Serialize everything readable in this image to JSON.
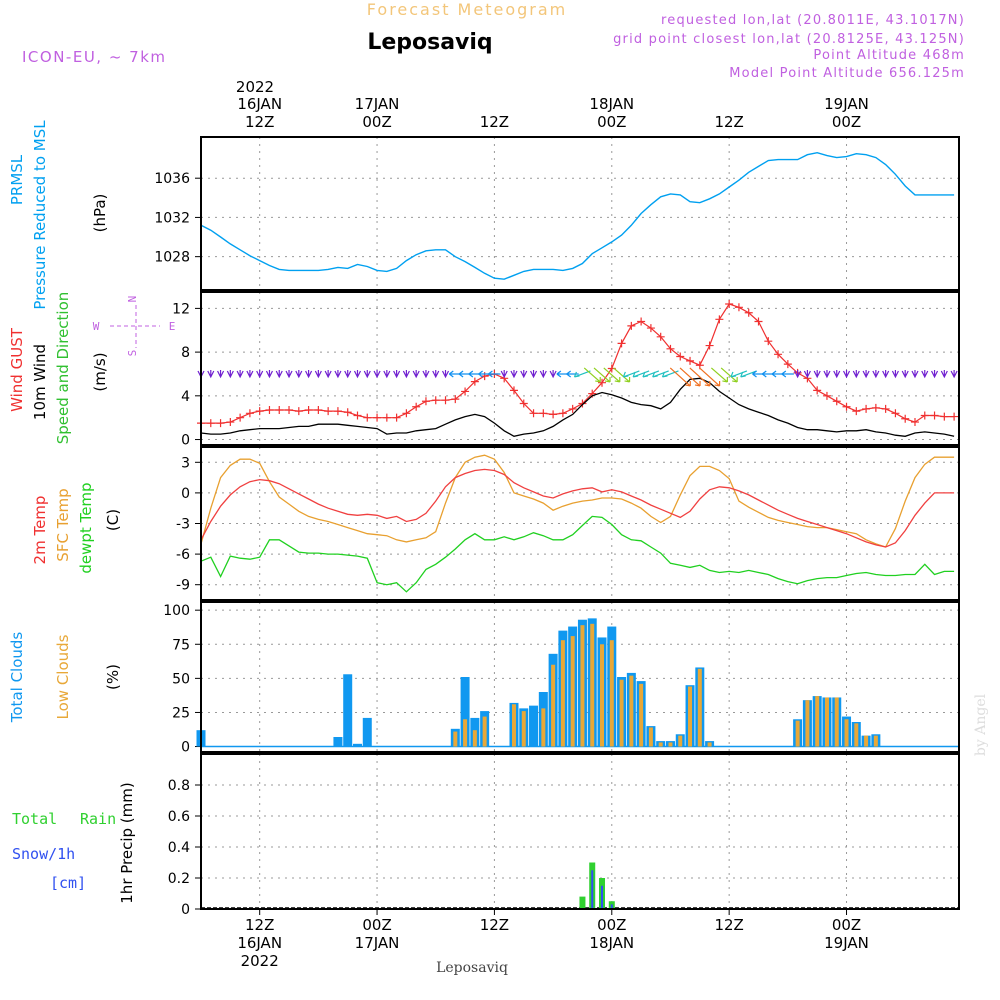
{
  "header": {
    "subtitle": "Forecast Meteogram",
    "station": "Leposaviq",
    "model": "ICON-EU, ~ 7km",
    "requested": "requested lon,lat (20.8011E, 43.1017N)",
    "grid": "grid point closest lon,lat (20.8125E, 43.125N)",
    "altitude": "Point Altitude 468m",
    "model_altitude": "Model Point Altitude 656.125m",
    "year": "2022",
    "footer_station": "Leposaviq",
    "watermark": "by Angel"
  },
  "colors": {
    "subtitle": "#f3c67a",
    "meta": "#c060e0",
    "pressure": "#00a0f0",
    "gust": "#f03030",
    "wind": "#000000",
    "dir": "#30c030",
    "t2m": "#f04040",
    "sfc": "#e8a030",
    "dew": "#20d020",
    "total_cloud": "#1098f0",
    "low_cloud": "#e8a838",
    "rain": "#30d030",
    "snow": "#3050f0",
    "grid": "#999999"
  },
  "time_axis": {
    "hours": [
      6,
      6,
      6,
      6,
      6,
      6,
      6
    ],
    "top_labels": [
      {
        "h": 12,
        "line1": "16JAN",
        "line2": "12Z"
      },
      {
        "h": 24,
        "line1": "17JAN",
        "line2": "00Z"
      },
      {
        "h": 36,
        "line1": "",
        "line2": "12Z"
      },
      {
        "h": 48,
        "line1": "18JAN",
        "line2": "00Z"
      },
      {
        "h": 60,
        "line1": "",
        "line2": "12Z"
      },
      {
        "h": 72,
        "line1": "19JAN",
        "line2": "00Z"
      }
    ],
    "bottom_labels": [
      {
        "h": 12,
        "line1": "12Z",
        "line2": "16JAN",
        "line3": "2022"
      },
      {
        "h": 24,
        "line1": "00Z",
        "line2": "17JAN",
        "line3": ""
      },
      {
        "h": 36,
        "line1": "12Z",
        "line2": "",
        "line3": ""
      },
      {
        "h": 48,
        "line1": "00Z",
        "line2": "18JAN",
        "line3": ""
      },
      {
        "h": 60,
        "line1": "12Z",
        "line2": "",
        "line3": ""
      },
      {
        "h": 72,
        "line1": "00Z",
        "line2": "19JAN",
        "line3": ""
      }
    ]
  },
  "chart_data": [
    {
      "type": "line",
      "id": "pressure",
      "label1": "PRMSL",
      "label2": "Pressure Reduced to MSL",
      "unit": "(hPa)",
      "ylim": [
        1024.6,
        1040.2
      ],
      "yticks": [
        1028,
        1032,
        1036
      ],
      "x": [
        6,
        7,
        8,
        9,
        10,
        11,
        12,
        13,
        14,
        15,
        16,
        17,
        18,
        19,
        20,
        21,
        22,
        23,
        24,
        25,
        26,
        27,
        28,
        29,
        30,
        31,
        32,
        33,
        34,
        35,
        36,
        37,
        38,
        39,
        40,
        41,
        42,
        43,
        44,
        45,
        46,
        47,
        48,
        49,
        50,
        51,
        52,
        53,
        54,
        55,
        56,
        57,
        58,
        59,
        60,
        61,
        62,
        63,
        64,
        65,
        66,
        67,
        68,
        69,
        70,
        71,
        72,
        73,
        74,
        75,
        76,
        77,
        78,
        79,
        80,
        81,
        82,
        83
      ],
      "values": [
        1031.2,
        1030.7,
        1030.0,
        1029.3,
        1028.7,
        1028.1,
        1027.6,
        1027.1,
        1026.7,
        1026.6,
        1026.6,
        1026.6,
        1026.6,
        1026.7,
        1026.9,
        1026.8,
        1027.2,
        1027.0,
        1026.6,
        1026.5,
        1026.8,
        1027.6,
        1028.2,
        1028.6,
        1028.7,
        1028.7,
        1028.0,
        1027.5,
        1026.9,
        1026.3,
        1025.8,
        1025.7,
        1026.1,
        1026.5,
        1026.7,
        1026.7,
        1026.7,
        1026.6,
        1026.8,
        1027.3,
        1028.3,
        1028.9,
        1029.5,
        1030.2,
        1031.2,
        1032.4,
        1033.3,
        1034.1,
        1034.4,
        1034.3,
        1033.6,
        1033.5,
        1033.9,
        1034.4,
        1035.1,
        1035.8,
        1036.6,
        1037.2,
        1037.8,
        1037.9,
        1037.9,
        1037.9,
        1038.4,
        1038.6,
        1038.3,
        1038.1,
        1038.2,
        1038.5,
        1038.4,
        1038.1,
        1037.4,
        1036.4,
        1035.2,
        1034.3,
        1034.3,
        1034.3,
        1034.3,
        1034.3
      ]
    },
    {
      "type": "line",
      "id": "wind",
      "label1": "Wind GUST",
      "label2": "10m Wind",
      "label3": "Speed and Direction",
      "unit": "(m/s)",
      "compass": [
        "N",
        "S",
        "W",
        "E"
      ],
      "ylim": [
        -0.5,
        13.5
      ],
      "yticks": [
        0,
        4,
        8,
        12
      ],
      "x": [
        6,
        7,
        8,
        9,
        10,
        11,
        12,
        13,
        14,
        15,
        16,
        17,
        18,
        19,
        20,
        21,
        22,
        23,
        24,
        25,
        26,
        27,
        28,
        29,
        30,
        31,
        32,
        33,
        34,
        35,
        36,
        37,
        38,
        39,
        40,
        41,
        42,
        43,
        44,
        45,
        46,
        47,
        48,
        49,
        50,
        51,
        52,
        53,
        54,
        55,
        56,
        57,
        58,
        59,
        60,
        61,
        62,
        63,
        64,
        65,
        66,
        67,
        68,
        69,
        70,
        71,
        72,
        73,
        74,
        75,
        76,
        77,
        78,
        79,
        80,
        81,
        82,
        83
      ],
      "series": [
        {
          "name": "Wind GUST",
          "values": [
            1.5,
            1.5,
            1.5,
            1.6,
            2.0,
            2.4,
            2.6,
            2.7,
            2.7,
            2.7,
            2.6,
            2.7,
            2.7,
            2.6,
            2.6,
            2.5,
            2.2,
            2.0,
            2.0,
            2.0,
            2.0,
            2.4,
            3.0,
            3.5,
            3.6,
            3.6,
            3.7,
            4.4,
            5.3,
            5.8,
            6.0,
            5.6,
            4.5,
            3.3,
            2.4,
            2.4,
            2.3,
            2.4,
            2.8,
            3.3,
            4.2,
            5.2,
            6.5,
            8.8,
            10.4,
            10.8,
            10.2,
            9.4,
            8.3,
            7.6,
            7.2,
            6.8,
            8.6,
            11.0,
            12.4,
            12.1,
            11.6,
            10.8,
            9.0,
            7.8,
            6.9,
            6.1,
            5.6,
            4.5,
            4.0,
            3.5,
            3.0,
            2.6,
            2.8,
            2.9,
            2.8,
            2.4,
            1.9,
            1.6,
            2.2,
            2.2,
            2.1,
            2.1
          ]
        },
        {
          "name": "10m Wind",
          "values": [
            0.6,
            0.5,
            0.5,
            0.6,
            0.8,
            0.9,
            1.0,
            1.0,
            1.0,
            1.1,
            1.2,
            1.2,
            1.4,
            1.4,
            1.4,
            1.3,
            1.2,
            1.1,
            1.0,
            0.5,
            0.6,
            0.6,
            0.8,
            0.9,
            1.0,
            1.4,
            1.8,
            2.1,
            2.3,
            2.1,
            1.5,
            0.8,
            0.3,
            0.5,
            0.6,
            0.8,
            1.2,
            1.8,
            2.3,
            3.2,
            4.0,
            4.3,
            4.1,
            3.8,
            3.4,
            3.2,
            3.1,
            2.8,
            3.4,
            4.6,
            5.5,
            5.6,
            5.2,
            4.4,
            3.8,
            3.2,
            2.8,
            2.5,
            2.2,
            1.8,
            1.5,
            1.1,
            0.9,
            0.9,
            0.8,
            0.7,
            0.8,
            0.8,
            0.9,
            0.7,
            0.6,
            0.4,
            0.3,
            0.6,
            0.7,
            0.6,
            0.5,
            0.3
          ]
        }
      ]
    },
    {
      "type": "line",
      "id": "temp",
      "label1": "2m Temp",
      "label2": "SFC Temp",
      "label3": "dewpt Temp",
      "unit": "(C)",
      "ylim": [
        -10.5,
        4.5
      ],
      "yticks": [
        -9,
        -6,
        -3,
        0,
        3
      ],
      "x": [
        6,
        7,
        8,
        9,
        10,
        11,
        12,
        13,
        14,
        15,
        16,
        17,
        18,
        19,
        20,
        21,
        22,
        23,
        24,
        25,
        26,
        27,
        28,
        29,
        30,
        31,
        32,
        33,
        34,
        35,
        36,
        37,
        38,
        39,
        40,
        41,
        42,
        43,
        44,
        45,
        46,
        47,
        48,
        49,
        50,
        51,
        52,
        53,
        54,
        55,
        56,
        57,
        58,
        59,
        60,
        61,
        62,
        63,
        64,
        65,
        66,
        67,
        68,
        69,
        70,
        71,
        72,
        73,
        74,
        75,
        76,
        77,
        78,
        79,
        80,
        81,
        82,
        83
      ],
      "series": [
        {
          "name": "2m Temp",
          "values": [
            -4.6,
            -2.8,
            -1.3,
            -0.2,
            0.6,
            1.1,
            1.3,
            1.2,
            0.9,
            0.4,
            -0.1,
            -0.6,
            -1.1,
            -1.5,
            -1.8,
            -2.1,
            -2.2,
            -2.1,
            -2.2,
            -2.5,
            -2.3,
            -2.8,
            -2.6,
            -2.0,
            -0.8,
            0.6,
            1.5,
            1.9,
            2.2,
            2.3,
            2.2,
            1.8,
            1.0,
            0.5,
            0.1,
            -0.3,
            -0.5,
            -0.1,
            0.2,
            0.4,
            0.5,
            0.1,
            0.3,
            0.1,
            -0.3,
            -0.7,
            -1.2,
            -1.6,
            -2.0,
            -2.4,
            -1.8,
            -0.6,
            0.3,
            0.6,
            0.5,
            0.2,
            -0.2,
            -0.7,
            -1.2,
            -1.7,
            -2.1,
            -2.5,
            -2.8,
            -3.1,
            -3.4,
            -3.7,
            -4.0,
            -4.4,
            -4.8,
            -5.1,
            -5.3,
            -4.9,
            -3.7,
            -2.2,
            -1.0,
            0.0,
            0.0,
            0.0
          ]
        },
        {
          "name": "SFC Temp",
          "values": [
            -5.0,
            -1.5,
            1.5,
            2.7,
            3.3,
            3.3,
            2.9,
            1.1,
            -0.4,
            -1.1,
            -1.8,
            -2.3,
            -2.6,
            -2.8,
            -3.1,
            -3.4,
            -3.7,
            -4.0,
            -4.1,
            -4.2,
            -4.6,
            -4.8,
            -4.6,
            -4.4,
            -3.8,
            -1.0,
            1.5,
            3.0,
            3.5,
            3.7,
            3.3,
            2.0,
            0.0,
            -0.3,
            -0.6,
            -1.0,
            -1.7,
            -1.3,
            -1.0,
            -0.8,
            -0.7,
            -0.5,
            -0.5,
            -0.6,
            -1.0,
            -1.5,
            -2.3,
            -2.9,
            -2.3,
            -0.2,
            1.7,
            2.6,
            2.6,
            2.2,
            1.4,
            -0.8,
            -1.4,
            -1.9,
            -2.4,
            -2.7,
            -2.9,
            -3.1,
            -3.3,
            -3.4,
            -3.4,
            -3.6,
            -3.8,
            -4.0,
            -4.6,
            -5.0,
            -5.3,
            -3.5,
            -0.8,
            1.5,
            2.8,
            3.5,
            3.5,
            3.5
          ]
        },
        {
          "name": "dewpt Temp",
          "values": [
            -6.7,
            -6.3,
            -8.2,
            -6.2,
            -6.4,
            -6.5,
            -6.3,
            -4.6,
            -4.6,
            -5.2,
            -5.8,
            -5.9,
            -5.9,
            -6.0,
            -6.0,
            -6.1,
            -6.2,
            -6.4,
            -8.8,
            -9.0,
            -8.8,
            -9.7,
            -8.8,
            -7.5,
            -7.0,
            -6.3,
            -5.5,
            -4.6,
            -4.0,
            -4.6,
            -4.6,
            -4.3,
            -4.6,
            -4.3,
            -3.9,
            -4.2,
            -4.6,
            -4.6,
            -4.1,
            -3.2,
            -2.3,
            -2.4,
            -3.1,
            -4.1,
            -4.6,
            -4.7,
            -5.3,
            -5.9,
            -6.9,
            -7.1,
            -7.3,
            -7.1,
            -7.6,
            -7.8,
            -7.7,
            -7.8,
            -7.6,
            -7.8,
            -8.0,
            -8.4,
            -8.7,
            -8.9,
            -8.6,
            -8.4,
            -8.3,
            -8.3,
            -8.1,
            -7.9,
            -7.8,
            -8.0,
            -8.1,
            -8.1,
            -8.0,
            -8.0,
            -7.0,
            -8.0,
            -7.7,
            -7.7
          ]
        }
      ]
    },
    {
      "type": "bar",
      "id": "clouds",
      "label1": "Total Clouds",
      "label2": "Low Clouds",
      "unit": "(%)",
      "ylim": [
        -4,
        106
      ],
      "yticks": [
        0,
        25,
        50,
        75,
        100
      ],
      "x": [
        6,
        7,
        8,
        9,
        10,
        11,
        12,
        13,
        14,
        15,
        16,
        17,
        18,
        19,
        20,
        21,
        22,
        23,
        24,
        25,
        26,
        27,
        28,
        29,
        30,
        31,
        32,
        33,
        34,
        35,
        36,
        37,
        38,
        39,
        40,
        41,
        42,
        43,
        44,
        45,
        46,
        47,
        48,
        49,
        50,
        51,
        52,
        53,
        54,
        55,
        56,
        57,
        58,
        59,
        60,
        61,
        62,
        63,
        64,
        65,
        66,
        67,
        68,
        69,
        70,
        71,
        72,
        73,
        74,
        75,
        76,
        77,
        78,
        79,
        80,
        81,
        82,
        83
      ],
      "series": [
        {
          "name": "Total Clouds",
          "values": [
            12,
            0,
            0,
            0,
            0,
            0,
            0,
            0,
            0,
            0,
            0,
            0,
            0,
            0,
            7,
            53,
            2,
            21,
            0,
            0,
            0,
            0,
            0,
            0,
            0,
            0,
            13,
            51,
            21,
            26,
            0,
            0,
            32,
            28,
            30,
            40,
            68,
            85,
            88,
            93,
            94,
            80,
            88,
            51,
            54,
            48,
            15,
            4,
            4,
            9,
            45,
            58,
            4,
            0,
            0,
            0,
            0,
            0,
            0,
            0,
            0,
            20,
            34,
            37,
            36,
            36,
            22,
            18,
            8,
            9,
            0,
            0,
            0,
            0,
            0,
            0,
            0,
            0
          ]
        },
        {
          "name": "Low Clouds",
          "values": [
            0,
            0,
            0,
            0,
            0,
            0,
            0,
            0,
            0,
            0,
            0,
            0,
            0,
            0,
            0,
            0,
            0,
            0,
            0,
            0,
            0,
            0,
            0,
            0,
            0,
            0,
            11,
            20,
            12,
            22,
            0,
            0,
            31,
            26,
            0,
            28,
            60,
            78,
            81,
            89,
            90,
            75,
            78,
            49,
            52,
            46,
            14,
            3,
            3,
            8,
            44,
            57,
            3,
            0,
            0,
            0,
            0,
            0,
            0,
            0,
            0,
            19,
            34,
            37,
            36,
            36,
            20,
            17,
            8,
            8,
            0,
            0,
            0,
            0,
            0,
            0,
            0,
            0
          ]
        }
      ]
    },
    {
      "type": "bar",
      "id": "precip",
      "label_total": "Total",
      "label_rain": "Rain",
      "label_snow": "Snow/1h",
      "label_cm": "[cm]",
      "unit": "1hr Precip (mm)",
      "ylim": [
        0,
        1.0
      ],
      "yticks": [
        0,
        0.2,
        0.4,
        0.6,
        0.8
      ],
      "x": [
        45,
        46,
        47,
        48
      ],
      "series": [
        {
          "name": "Total Rain",
          "values": [
            0.08,
            0.3,
            0.2,
            0.05
          ]
        },
        {
          "name": "Snow/1h",
          "values": [
            0.0,
            0.25,
            0.15,
            0.03
          ]
        }
      ]
    }
  ]
}
